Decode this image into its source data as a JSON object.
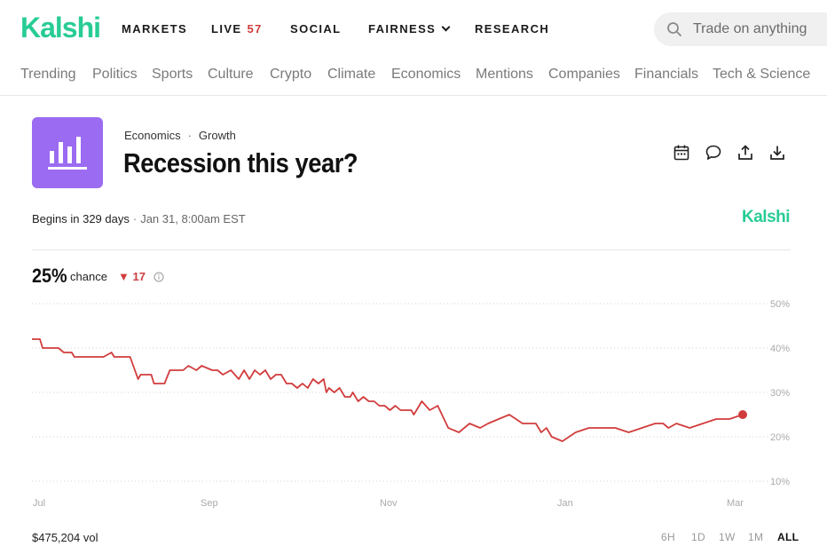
{
  "colors": {
    "brand": "#28CC95",
    "badge_red": "#D13D3D",
    "chart_line": "#D13D3D",
    "icon_bg": "#9B6BF2"
  },
  "header": {
    "logo": "Kalshi",
    "nav": [
      {
        "label": "MARKETS"
      },
      {
        "label": "LIVE",
        "badge": "57"
      },
      {
        "label": "SOCIAL"
      },
      {
        "label": "FAIRNESS"
      },
      {
        "label": "RESEARCH"
      }
    ],
    "search_placeholder": "Trade on anything"
  },
  "categories": [
    "Trending",
    "Politics",
    "Sports",
    "Culture",
    "Crypto",
    "Climate",
    "Economics",
    "Mentions",
    "Companies",
    "Financials",
    "Tech & Science"
  ],
  "market": {
    "icon": "bar-chart-icon",
    "breadcrumb": [
      "Economics",
      "Growth"
    ],
    "title": "Recession this year?",
    "begins": "Begins in 329 days",
    "begins_date": "Jan 31, 8:00am EST",
    "brand_small": "Kalshi",
    "chance_pct": "25%",
    "chance_word": "chance",
    "chance_delta": "▼ 17",
    "volume": "$475,204 vol"
  },
  "actions": [
    "calendar-icon",
    "comment-icon",
    "share-icon",
    "download-icon"
  ],
  "time_ranges": [
    {
      "label": "6H",
      "active": false
    },
    {
      "label": "1D",
      "active": false
    },
    {
      "label": "1W",
      "active": false
    },
    {
      "label": "1M",
      "active": false
    },
    {
      "label": "ALL",
      "active": true
    }
  ],
  "chart_data": {
    "type": "line",
    "x_ticks": [
      "Jul",
      "Sep",
      "Nov",
      "Jan",
      "Mar"
    ],
    "y_ticks": [
      "50%",
      "40%",
      "30%",
      "20%",
      "10%"
    ],
    "ylim": [
      10,
      50
    ],
    "grid": true,
    "series": [
      {
        "x": [
          0,
          3,
          4,
          10,
          12,
          15,
          16,
          27,
          30,
          31,
          37,
          40,
          41,
          45,
          46,
          50,
          52,
          57,
          59,
          62,
          64,
          68,
          70,
          72,
          75,
          78,
          80,
          82,
          84,
          86,
          88,
          90,
          92,
          94,
          96,
          98,
          100,
          102,
          104,
          106,
          108,
          110,
          111,
          112,
          114,
          116,
          118,
          120,
          121,
          123,
          125,
          127,
          129,
          131,
          133,
          135,
          137,
          139,
          141,
          143,
          144,
          147,
          150,
          153,
          157,
          161,
          165,
          169,
          172,
          176,
          180,
          185,
          190,
          192,
          194,
          196,
          200,
          205,
          210,
          215,
          220,
          225,
          230,
          235,
          238,
          240,
          243,
          248,
          253,
          258,
          263,
          268
        ],
        "y": [
          42,
          42,
          40,
          40,
          39,
          39,
          38,
          38,
          39,
          38,
          38,
          33,
          34,
          34,
          32,
          32,
          35,
          35,
          36,
          35,
          36,
          35,
          35,
          34,
          35,
          33,
          35,
          33,
          35,
          34,
          35,
          33,
          34,
          34,
          32,
          32,
          31,
          32,
          31,
          33,
          32,
          33,
          30,
          31,
          30,
          31,
          29,
          29,
          30,
          28,
          29,
          28,
          28,
          27,
          27,
          26,
          27,
          26,
          26,
          26,
          25,
          28,
          26,
          27,
          22,
          21,
          23,
          22,
          23,
          24,
          25,
          23,
          23,
          21,
          22,
          20,
          19,
          21,
          22,
          22,
          22,
          21,
          22,
          23,
          23,
          22,
          23,
          22,
          23,
          24,
          24,
          25
        ]
      }
    ]
  }
}
